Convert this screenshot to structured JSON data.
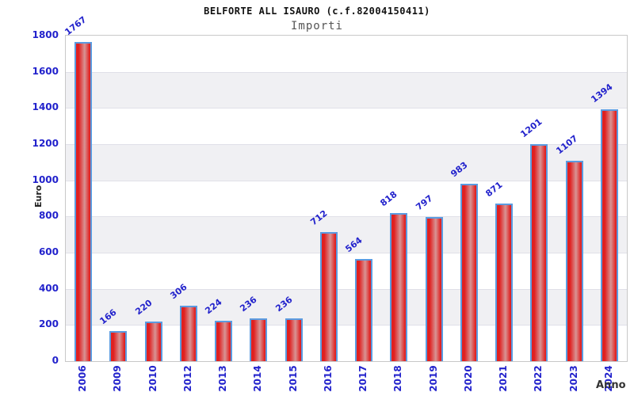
{
  "chart_data": {
    "type": "bar",
    "title": "BELFORTE ALL ISAURO (c.f.82004150411)",
    "subtitle": "Importi",
    "xlabel": "Anno",
    "ylabel": "Euro",
    "categories": [
      "2006",
      "2009",
      "2010",
      "2012",
      "2013",
      "2014",
      "2015",
      "2016",
      "2017",
      "2018",
      "2019",
      "2020",
      "2021",
      "2022",
      "2023",
      "2024"
    ],
    "values": [
      1767,
      166,
      220,
      306,
      224,
      236,
      236,
      712,
      564,
      818,
      797,
      983,
      871,
      1201,
      1107,
      1394
    ],
    "ylim": [
      0,
      1800
    ],
    "ytick_step": 200,
    "grid": "horizontal-alternating-bands",
    "legend": "none",
    "colors": {
      "label_text": "#2222cc",
      "bar_edge": "#e02020",
      "bar_center": "#d89494",
      "bar_border": "#5b9be0",
      "band_gray": "#f0f0f3",
      "band_white": "#ffffff",
      "title_text": "#111111",
      "subtitle_text": "#555555"
    }
  }
}
